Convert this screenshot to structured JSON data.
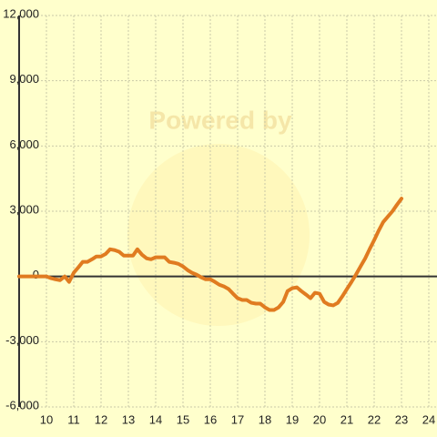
{
  "chart_data": {
    "type": "line",
    "watermark": "Powered by",
    "x": [
      9,
      10,
      10.17,
      10.33,
      10.5,
      10.67,
      10.83,
      11,
      11.17,
      11.33,
      11.5,
      11.67,
      11.83,
      12,
      12.17,
      12.33,
      12.5,
      12.67,
      12.83,
      13,
      13.17,
      13.33,
      13.5,
      13.67,
      13.83,
      14,
      14.17,
      14.33,
      14.5,
      14.67,
      14.83,
      15,
      15.17,
      15.33,
      15.5,
      15.67,
      15.83,
      16,
      16.17,
      16.33,
      16.5,
      16.67,
      16.83,
      17,
      17.17,
      17.33,
      17.5,
      17.67,
      17.83,
      18,
      18.17,
      18.33,
      18.5,
      18.67,
      18.83,
      19,
      19.17,
      19.33,
      19.5,
      19.67,
      19.83,
      20,
      20.17,
      20.33,
      20.5,
      20.67,
      20.83,
      21,
      21.17,
      21.33,
      21.5,
      21.67,
      21.83,
      22,
      22.17,
      22.33,
      22.5,
      22.67,
      22.83,
      23
    ],
    "series": [
      {
        "color": "#e07b20",
        "values": [
          0,
          0,
          -80,
          -130,
          -170,
          0,
          -250,
          170,
          420,
          670,
          670,
          790,
          920,
          920,
          1040,
          1250,
          1210,
          1130,
          960,
          960,
          960,
          1250,
          1000,
          830,
          790,
          880,
          880,
          880,
          670,
          630,
          580,
          460,
          290,
          170,
          80,
          -40,
          -130,
          -130,
          -250,
          -380,
          -460,
          -580,
          -790,
          -1000,
          -1080,
          -1080,
          -1210,
          -1250,
          -1250,
          -1420,
          -1540,
          -1540,
          -1420,
          -1170,
          -670,
          -540,
          -500,
          -670,
          -830,
          -1000,
          -750,
          -790,
          -1170,
          -1290,
          -1330,
          -1210,
          -920,
          -580,
          -250,
          80,
          460,
          830,
          1250,
          1670,
          2120,
          2500,
          2750,
          3000,
          3290,
          3580
        ]
      }
    ],
    "xlim": [
      9,
      24.3
    ],
    "xticks": [
      10,
      11,
      12,
      13,
      14,
      15,
      16,
      17,
      18,
      19,
      20,
      21,
      22,
      23,
      24
    ],
    "ylim": [
      -6000,
      12000
    ],
    "yticks": [
      {
        "value": -6000,
        "label": "-6,000"
      },
      {
        "value": -3000,
        "label": "-3,000"
      },
      0,
      {
        "value": 3000,
        "label": "3,000"
      },
      {
        "value": 6000,
        "label": "6,000"
      },
      {
        "value": 9000,
        "label": "9,000"
      },
      {
        "value": 12000,
        "label": "12,000"
      }
    ],
    "grid": true
  }
}
